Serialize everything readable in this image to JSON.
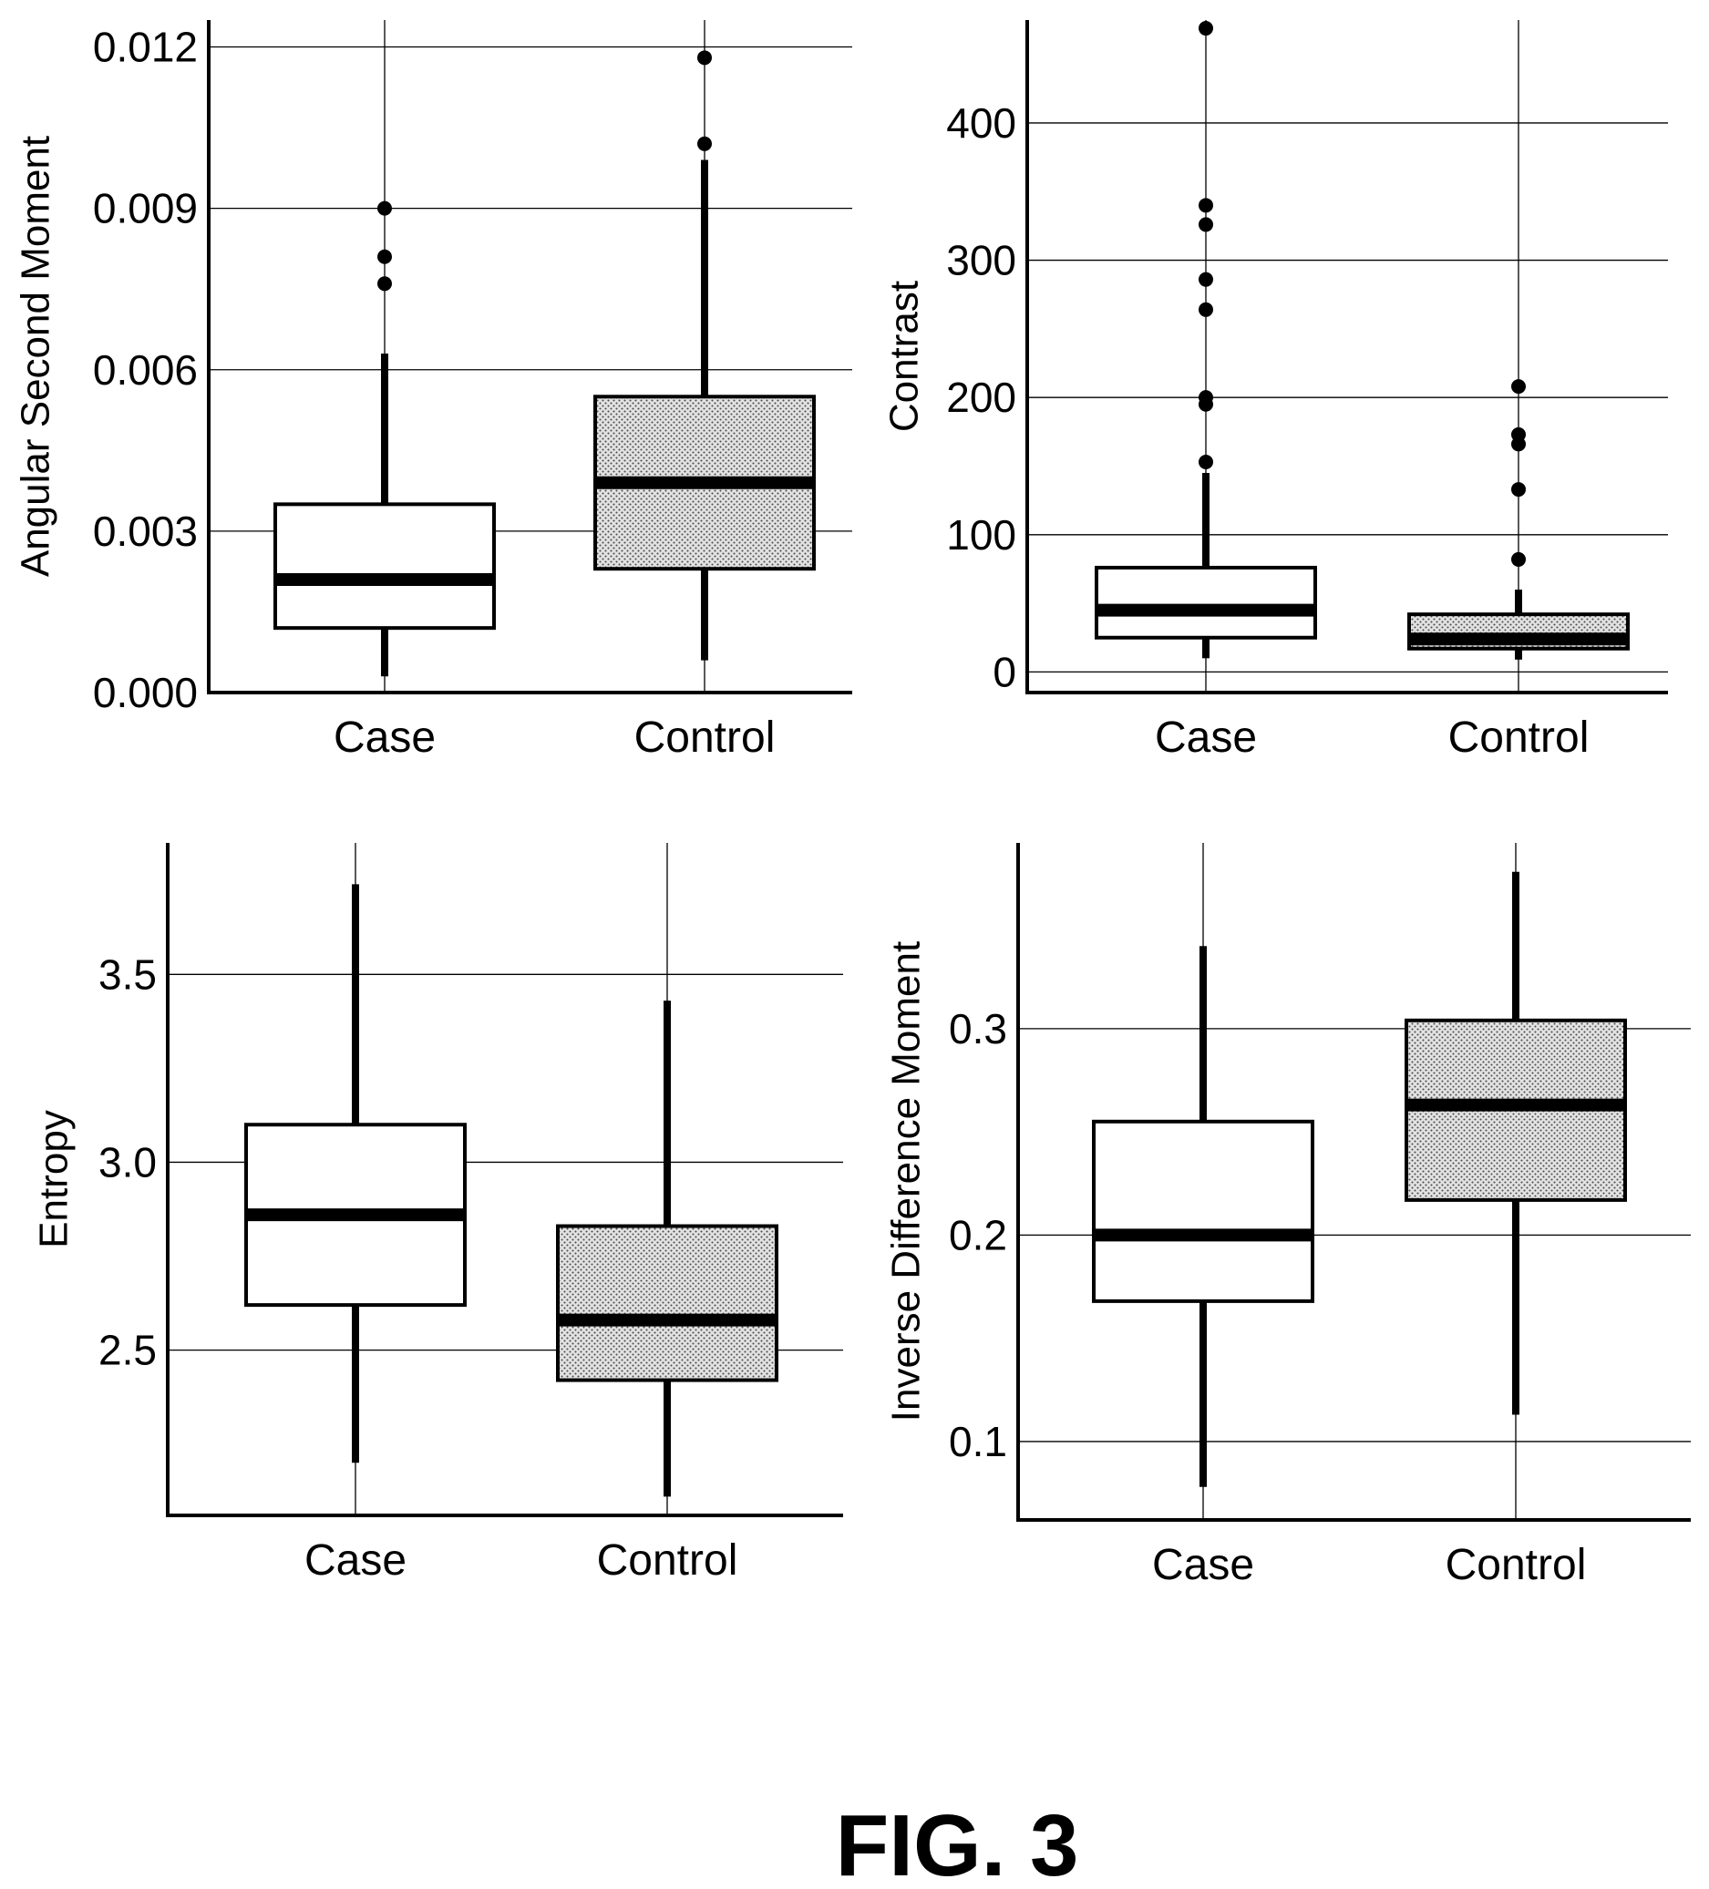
{
  "figure_label": "FIG. 3",
  "colors": {
    "ink": "#000000",
    "paper": "#ffffff",
    "control_fill": "#cfcfcf"
  },
  "chart_data": [
    {
      "type": "box",
      "ylabel": "Angular Second Moment",
      "categories": [
        "Case",
        "Control"
      ],
      "ylim": [
        0.0,
        0.0125
      ],
      "yticks": [
        0.0,
        0.003,
        0.006,
        0.009,
        0.012
      ],
      "ytick_labels": [
        "0.000",
        "0.003",
        "0.006",
        "0.009",
        "0.012"
      ],
      "grid": true,
      "boxes": [
        {
          "name": "Case",
          "whisker_low": 0.0003,
          "q1": 0.0012,
          "median": 0.0021,
          "q3": 0.0035,
          "whisker_high": 0.0063,
          "outliers": [
            0.0076,
            0.0081,
            0.009
          ],
          "fill": "white"
        },
        {
          "name": "Control",
          "whisker_low": 0.0006,
          "q1": 0.0023,
          "median": 0.0039,
          "q3": 0.0055,
          "whisker_high": 0.0099,
          "outliers": [
            0.0102,
            0.0118
          ],
          "fill": "stippled"
        }
      ]
    },
    {
      "type": "box",
      "ylabel": "Contrast",
      "categories": [
        "Case",
        "Control"
      ],
      "ylim": [
        -15,
        475
      ],
      "yticks": [
        0,
        100,
        200,
        300,
        400
      ],
      "ytick_labels": [
        "0",
        "100",
        "200",
        "300",
        "400"
      ],
      "grid": true,
      "boxes": [
        {
          "name": "Case",
          "whisker_low": 10,
          "q1": 25,
          "median": 45,
          "q3": 76,
          "whisker_high": 145,
          "outliers": [
            153,
            195,
            200,
            264,
            286,
            326,
            340,
            469
          ],
          "fill": "white"
        },
        {
          "name": "Control",
          "whisker_low": 9,
          "q1": 17,
          "median": 24,
          "q3": 42,
          "whisker_high": 60,
          "outliers": [
            82,
            133,
            166,
            173,
            208
          ],
          "fill": "stippled"
        }
      ]
    },
    {
      "type": "box",
      "ylabel": "Entropy",
      "categories": [
        "Case",
        "Control"
      ],
      "ylim": [
        2.06,
        3.85
      ],
      "yticks": [
        2.5,
        3.0,
        3.5
      ],
      "ytick_labels": [
        "2.5",
        "3.0",
        "3.5"
      ],
      "grid": true,
      "boxes": [
        {
          "name": "Case",
          "whisker_low": 2.2,
          "q1": 2.62,
          "median": 2.86,
          "q3": 3.1,
          "whisker_high": 3.74,
          "outliers": [],
          "fill": "white"
        },
        {
          "name": "Control",
          "whisker_low": 2.11,
          "q1": 2.42,
          "median": 2.58,
          "q3": 2.83,
          "whisker_high": 3.43,
          "outliers": [],
          "fill": "stippled"
        }
      ]
    },
    {
      "type": "box",
      "ylabel": "Inverse Difference Moment",
      "categories": [
        "Case",
        "Control"
      ],
      "ylim": [
        0.062,
        0.39
      ],
      "yticks": [
        0.1,
        0.2,
        0.3
      ],
      "ytick_labels": [
        "0.1",
        "0.2",
        "0.3"
      ],
      "grid": true,
      "boxes": [
        {
          "name": "Case",
          "whisker_low": 0.078,
          "q1": 0.168,
          "median": 0.2,
          "q3": 0.255,
          "whisker_high": 0.34,
          "outliers": [],
          "fill": "white"
        },
        {
          "name": "Control",
          "whisker_low": 0.113,
          "q1": 0.217,
          "median": 0.263,
          "q3": 0.304,
          "whisker_high": 0.376,
          "outliers": [],
          "fill": "stippled"
        }
      ]
    }
  ]
}
